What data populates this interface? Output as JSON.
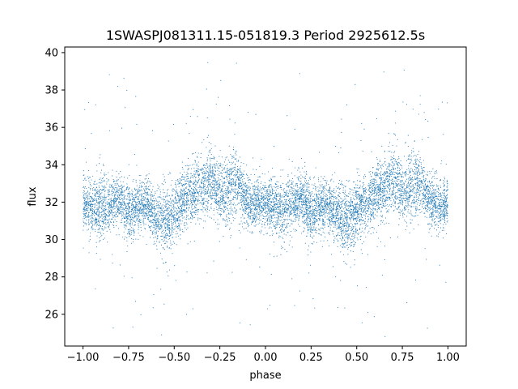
{
  "chart_data": {
    "type": "scatter",
    "title": "1SWASPJ081311.15-051819.3 Period 2925612.5s",
    "xlabel": "phase",
    "ylabel": "flux",
    "xlim": [
      -1.1,
      1.1
    ],
    "ylim": [
      24.3,
      40.3
    ],
    "xticks": [
      -1.0,
      -0.75,
      -0.5,
      -0.25,
      0.0,
      0.25,
      0.5,
      0.75,
      1.0
    ],
    "xtick_labels": [
      "−1.00",
      "−0.75",
      "−0.50",
      "−0.25",
      "0.00",
      "0.25",
      "0.50",
      "0.75",
      "1.00"
    ],
    "yticks": [
      26,
      28,
      30,
      32,
      34,
      36,
      38,
      40
    ],
    "ytick_labels": [
      "26",
      "28",
      "30",
      "32",
      "34",
      "36",
      "38",
      "40"
    ],
    "grid": false,
    "marker_color": "#1f77b4",
    "series_profile": {
      "phase": [
        0.0,
        0.05,
        0.1,
        0.15,
        0.2,
        0.25,
        0.3,
        0.35,
        0.4,
        0.45,
        0.5,
        0.55,
        0.6,
        0.65,
        0.7,
        0.75,
        0.8,
        0.85,
        0.9,
        0.95,
        1.0
      ],
      "center_flux": [
        32.0,
        31.8,
        31.6,
        31.9,
        32.2,
        31.4,
        31.8,
        31.9,
        31.2,
        31.0,
        31.5,
        32.0,
        32.4,
        32.8,
        33.2,
        32.5,
        32.8,
        33.0,
        32.0,
        31.8,
        32.0
      ],
      "spread": [
        1.2,
        1.4,
        1.6,
        1.3,
        1.1,
        1.5,
        1.2,
        1.3,
        1.4,
        1.8,
        1.5,
        1.4,
        1.3,
        1.5,
        1.6,
        1.4,
        1.9,
        1.3,
        1.2,
        1.2,
        1.2
      ]
    },
    "point_count": 9000
  }
}
